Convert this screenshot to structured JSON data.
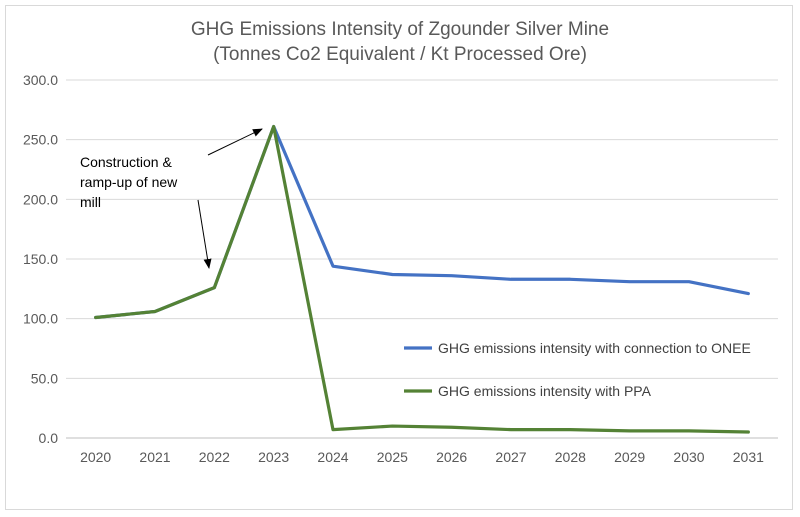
{
  "chart_data": {
    "type": "line",
    "title": "GHG Emissions Intensity of Zgounder Silver Mine",
    "subtitle": "(Tonnes Co2 Equivalent / Kt Processed Ore)",
    "x": [
      "2020",
      "2021",
      "2022",
      "2023",
      "2024",
      "2025",
      "2026",
      "2027",
      "2028",
      "2029",
      "2030",
      "2031"
    ],
    "ylim": [
      0,
      300
    ],
    "yticks": [
      "0.0",
      "50.0",
      "100.0",
      "150.0",
      "200.0",
      "250.0",
      "300.0"
    ],
    "grid": true,
    "legend_position": "right-middle",
    "series": [
      {
        "name": "GHG emissions intensity with connection to ONEE",
        "color": "#4472c4",
        "values": [
          101,
          106,
          126,
          261,
          144,
          137,
          136,
          133,
          133,
          131,
          131,
          121
        ]
      },
      {
        "name": "GHG emissions intensity with PPA",
        "color": "#548235",
        "values": [
          101,
          106,
          126,
          261,
          7,
          10,
          9,
          7,
          7,
          6,
          6,
          5
        ]
      }
    ],
    "annotation": {
      "lines": [
        "Construction &",
        "ramp-up of new",
        "mill"
      ]
    }
  }
}
